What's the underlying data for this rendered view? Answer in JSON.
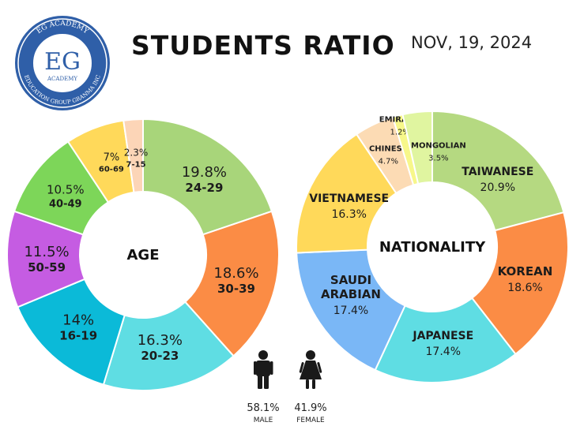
{
  "header": {
    "title": "STUDENTS RATIO",
    "date": "NOV, 19, 2024"
  },
  "logo": {
    "top_text": "EG ACADEMY",
    "monogram": "EG",
    "sub_text": "ACADEMY",
    "ring_text": "EDUCATION GROUP GRANMA INC",
    "color": "#2f5fa8"
  },
  "chart_data": [
    {
      "type": "donut",
      "center_label": "AGE",
      "slices": [
        {
          "label": "24-29",
          "value": 19.8,
          "display": "19.8%",
          "color": "#a8d57a"
        },
        {
          "label": "30-39",
          "value": 18.6,
          "display": "18.6%",
          "color": "#fb8c45"
        },
        {
          "label": "20-23",
          "value": 16.3,
          "display": "16.3%",
          "color": "#5fdde3"
        },
        {
          "label": "16-19",
          "value": 14.0,
          "display": "14%",
          "color": "#0bbad8"
        },
        {
          "label": "50-59",
          "value": 11.5,
          "display": "11.5%",
          "color": "#c55ce2"
        },
        {
          "label": "40-49",
          "value": 10.5,
          "display": "10.5%",
          "color": "#7dd659"
        },
        {
          "label": "60-69",
          "value": 7.0,
          "display": "7%",
          "color": "#ffd95a"
        },
        {
          "label": "7-15",
          "value": 2.3,
          "display": "2.3%",
          "color": "#fcd5b7"
        }
      ]
    },
    {
      "type": "donut",
      "center_label": "NATIONALITY",
      "slices": [
        {
          "label": "TAIWANESE",
          "value": 20.9,
          "display": "20.9%",
          "color": "#b5d981"
        },
        {
          "label": "KOREAN",
          "value": 18.6,
          "display": "18.6%",
          "color": "#fb8c45"
        },
        {
          "label": "JAPANESE",
          "value": 17.4,
          "display": "17.4%",
          "color": "#5fdde3"
        },
        {
          "label": "SAUDI ARABIAN",
          "value": 17.4,
          "display": "17.4%",
          "color": "#7ab7f6"
        },
        {
          "label": "VIETNAMESE",
          "value": 16.3,
          "display": "16.3%",
          "color": "#ffd95a"
        },
        {
          "label": "CHINESE",
          "value": 4.7,
          "display": "4.7%",
          "color": "#fcdbb4"
        },
        {
          "label": "EMIRATIS",
          "value": 1.2,
          "display": "1.2%",
          "color": "#f7f78a"
        },
        {
          "label": "MONGOLIAN",
          "value": 3.5,
          "display": "3.5%",
          "color": "#e0f5a0"
        }
      ]
    }
  ],
  "gender": {
    "male": {
      "value": "58.1%",
      "label": "MALE"
    },
    "female": {
      "value": "41.9%",
      "label": "FEMALE"
    }
  }
}
